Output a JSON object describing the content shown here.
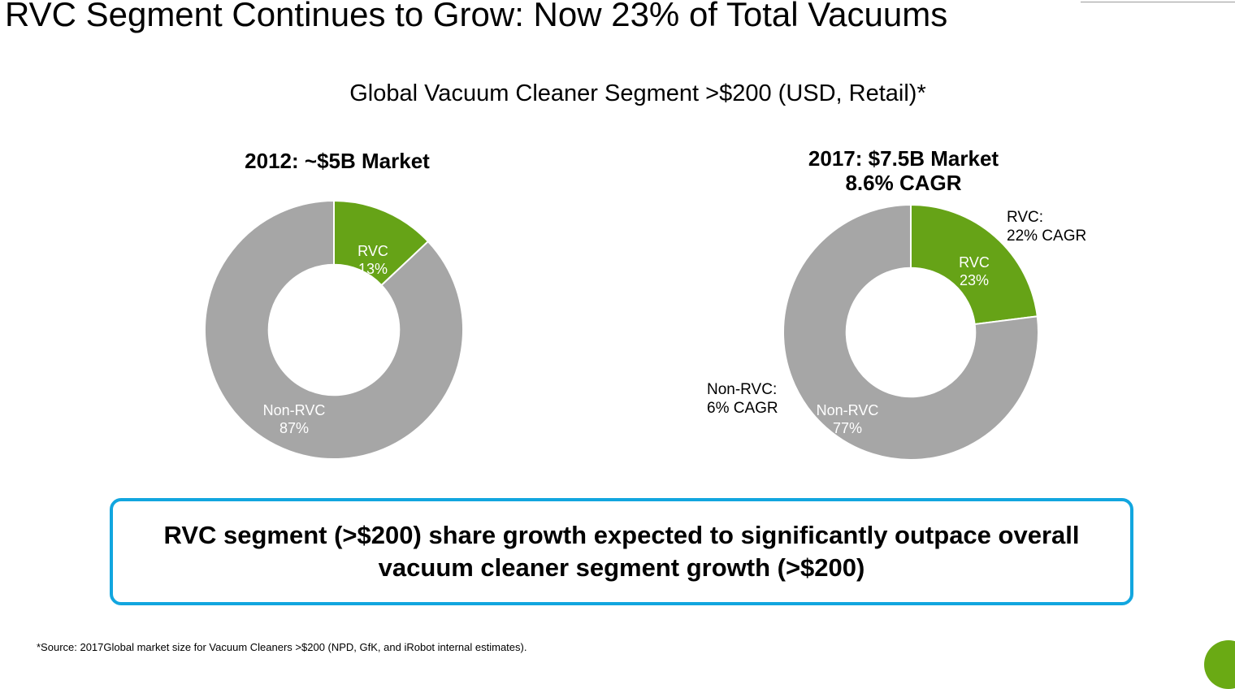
{
  "slide": {
    "title": "RVC Segment Continues to Grow: Now 23% of Total Vacuums",
    "subtitle": "Global Vacuum Cleaner Segment >$200 (USD, Retail)*",
    "takeaway": "RVC segment (>$200) share growth expected to significantly outpace overall vacuum cleaner segment growth (>$200)",
    "footnote": "*Source: 2017Global market size for Vacuum Cleaners >$200 (NPD, GfK, and iRobot internal estimates).",
    "colors": {
      "rvc": "#66a317",
      "non_rvc": "#a6a6a6",
      "box_border": "#12a6df",
      "logo": "#6aaa14"
    }
  },
  "chart_data": [
    {
      "type": "pie",
      "title": "2012: ~$5B Market",
      "subtitle": "",
      "categories": [
        "RVC",
        "Non-RVC"
      ],
      "values": [
        13,
        87
      ],
      "value_labels": [
        "13%",
        "87%"
      ],
      "unit": "%",
      "style": "donut",
      "legend": "none"
    },
    {
      "type": "pie",
      "title": "2017: $7.5B Market",
      "subtitle": "8.6% CAGR",
      "categories": [
        "RVC",
        "Non-RVC"
      ],
      "values": [
        23,
        77
      ],
      "value_labels": [
        "23%",
        "77%"
      ],
      "unit": "%",
      "style": "donut",
      "legend": "none",
      "annotations": [
        {
          "series": "RVC",
          "lines": [
            "RVC:",
            "22% CAGR"
          ]
        },
        {
          "series": "Non-RVC",
          "lines": [
            "Non-RVC:",
            "6% CAGR"
          ]
        }
      ]
    }
  ]
}
